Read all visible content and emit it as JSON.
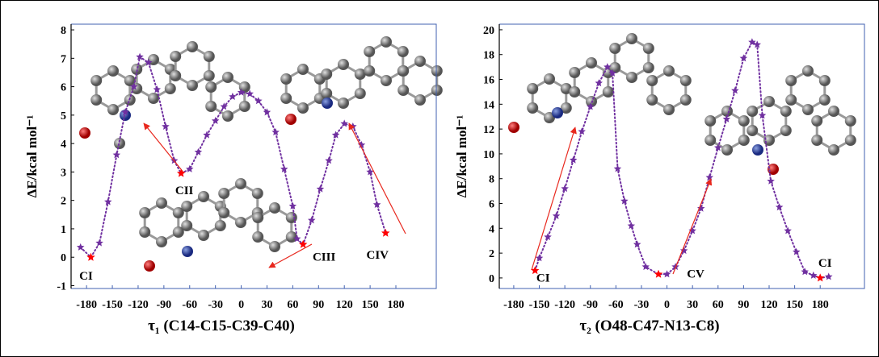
{
  "chart_data": [
    {
      "type": "line",
      "ylabel": "ΔE/kcal mol⁻¹",
      "xlabel": "τ₁ (C14-C15-C39-C40)",
      "xlim": [
        -198,
        227
      ],
      "ylim": [
        -1.1,
        8.2
      ],
      "xticks": [
        -180,
        -150,
        -120,
        -90,
        -60,
        -30,
        0,
        30,
        60,
        90,
        120,
        150,
        180
      ],
      "yticks": [
        -1,
        0,
        1,
        2,
        3,
        4,
        5,
        6,
        7,
        8
      ],
      "color": "#7030a0",
      "conformer_color": "#ff0000",
      "x": [
        -187,
        -175,
        -165,
        -155,
        -145,
        -135,
        -125,
        -118,
        -108,
        -98,
        -88,
        -78,
        -70,
        -60,
        -50,
        -40,
        -30,
        -20,
        -10,
        0,
        10,
        20,
        30,
        40,
        50,
        60,
        65,
        72,
        82,
        92,
        102,
        110,
        120,
        130,
        140,
        150,
        158,
        168
      ],
      "values": [
        0.35,
        0.0,
        0.5,
        1.95,
        3.6,
        5.1,
        6.0,
        7.05,
        6.85,
        5.9,
        4.6,
        3.4,
        2.95,
        3.1,
        3.7,
        4.3,
        4.8,
        5.3,
        5.65,
        5.8,
        5.75,
        5.5,
        5.1,
        4.4,
        3.1,
        1.8,
        0.65,
        0.45,
        1.3,
        2.4,
        3.4,
        4.3,
        4.7,
        4.6,
        3.95,
        3.0,
        1.85,
        0.85
      ],
      "conformers": [
        {
          "label": "CI",
          "x": -175,
          "y": 0.0
        },
        {
          "label": "CII",
          "x": -70,
          "y": 2.95
        },
        {
          "label": "CIII",
          "x": 72,
          "y": 0.45
        },
        {
          "label": "CIV",
          "x": 168,
          "y": 0.85
        }
      ]
    },
    {
      "type": "line",
      "ylabel": "ΔE/kcal mol⁻¹",
      "xlabel": "τ₂ (O48-C47-N13-C8)",
      "xlim": [
        -197,
        232
      ],
      "ylim": [
        -0.85,
        20.45
      ],
      "xticks": [
        -180,
        -150,
        -120,
        -90,
        -60,
        -30,
        0,
        30,
        60,
        90,
        120,
        150,
        180
      ],
      "yticks": [
        0,
        2,
        4,
        6,
        8,
        10,
        12,
        14,
        16,
        18,
        20
      ],
      "color": "#7030a0",
      "conformer_color": "#ff0000",
      "x": [
        -155,
        -150,
        -140,
        -130,
        -120,
        -110,
        -100,
        -90,
        -80,
        -70,
        -64,
        -58,
        -50,
        -42,
        -35,
        -25,
        -10,
        0,
        10,
        20,
        30,
        40,
        50,
        60,
        70,
        80,
        90,
        100,
        106,
        112,
        122,
        132,
        142,
        152,
        162,
        172,
        180,
        190
      ],
      "values": [
        0.6,
        1.6,
        3.3,
        5.0,
        7.2,
        9.5,
        11.8,
        13.8,
        15.7,
        17.0,
        16.5,
        8.8,
        6.2,
        4.2,
        2.7,
        0.9,
        0.3,
        0.3,
        0.9,
        2.2,
        3.8,
        5.6,
        8.1,
        10.5,
        12.8,
        15.1,
        17.7,
        19.0,
        18.8,
        13.1,
        7.8,
        5.7,
        3.8,
        2.1,
        0.5,
        0.2,
        0.0,
        0.1
      ],
      "conformers": [
        {
          "label": "CI",
          "x": -155,
          "y": 0.6
        },
        {
          "label": "CV",
          "x": -10,
          "y": 0.3
        },
        {
          "label": "CI",
          "x": 180,
          "y": 0.0
        }
      ]
    }
  ]
}
